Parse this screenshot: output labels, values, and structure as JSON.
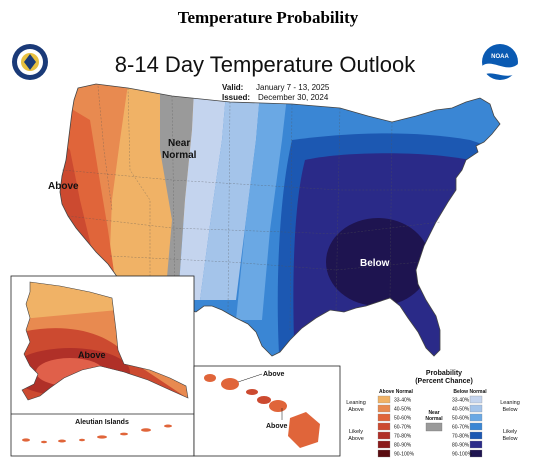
{
  "page_title": "Temperature Probability",
  "map": {
    "title": "8-14 Day Temperature Outlook",
    "valid_label": "Valid:",
    "valid_dates": "January 7 - 13, 2025",
    "issued_label": "Issued:",
    "issued_date": "December 30, 2024",
    "region_labels": {
      "above_west": "Above",
      "near_normal_line1": "Near",
      "near_normal_line2": "Normal",
      "below_east": "Below",
      "above_alaska": "Above",
      "above_hawaii_1": "Above",
      "above_hawaii_2": "Above",
      "aleutian": "Aleutian Islands"
    },
    "logos": {
      "left": "doc-seal-icon",
      "right": "noaa-logo-icon",
      "right_text": "NOAA"
    }
  },
  "legend": {
    "title_line1": "Probability",
    "title_line2": "(Percent Chance)",
    "above_header": "Above Normal",
    "below_header": "Below Normal",
    "near_label_line1": "Near",
    "near_label_line2": "Normal",
    "leaning_above_1": "Leaning",
    "leaning_above_2": "Above",
    "likely_above_1": "Likely",
    "likely_above_2": "Above",
    "leaning_below_1": "Leaning",
    "leaning_below_2": "Below",
    "likely_below_1": "Likely",
    "likely_below_2": "Below",
    "above": [
      {
        "range": "33-40%",
        "color": "#f0b266"
      },
      {
        "range": "40-50%",
        "color": "#e88a50"
      },
      {
        "range": "50-60%",
        "color": "#e0653a"
      },
      {
        "range": "60-70%",
        "color": "#cc4a30"
      },
      {
        "range": "70-80%",
        "color": "#b03028"
      },
      {
        "range": "80-90%",
        "color": "#8a1a1a"
      },
      {
        "range": "90-100%",
        "color": "#5a0c10"
      }
    ],
    "below": [
      {
        "range": "33-40%",
        "color": "#c4d4ee"
      },
      {
        "range": "40-50%",
        "color": "#a4c4ea"
      },
      {
        "range": "50-60%",
        "color": "#6aa8e4"
      },
      {
        "range": "60-70%",
        "color": "#3a86d4"
      },
      {
        "range": "70-80%",
        "color": "#1c58b2"
      },
      {
        "range": "80-90%",
        "color": "#2a2a88"
      },
      {
        "range": "90-100%",
        "color": "#1e1450"
      }
    ],
    "near_color": "#9a9a9a"
  }
}
